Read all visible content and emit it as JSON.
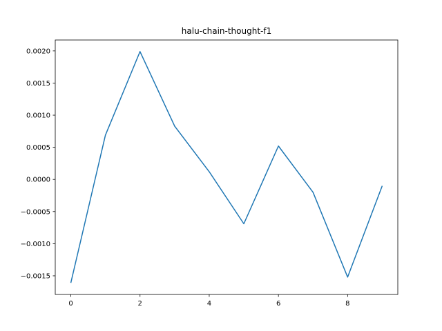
{
  "chart_data": {
    "type": "line",
    "title": "halu-chain-thought-f1",
    "xlabel": "",
    "ylabel": "",
    "x": [
      0,
      1,
      2,
      3,
      4,
      5,
      6,
      7,
      8,
      9
    ],
    "series": [
      {
        "values": [
          -0.00161,
          0.00069,
          0.00199,
          0.00083,
          0.00012,
          -0.00069,
          0.00052,
          -0.0002,
          -0.00152,
          -0.0001
        ],
        "color": "#1f77b4"
      }
    ],
    "xlim": [
      -0.45,
      9.45
    ],
    "ylim": [
      -0.00179,
      0.00217
    ],
    "xticks": [
      0,
      2,
      4,
      6,
      8
    ],
    "xtick_labels": [
      "0",
      "2",
      "4",
      "6",
      "8"
    ],
    "yticks": [
      -0.0015,
      -0.001,
      -0.0005,
      0,
      0.0005,
      0.001,
      0.0015,
      0.002
    ],
    "ytick_labels": [
      "−0.0015",
      "−0.0010",
      "−0.0005",
      "0.0000",
      "0.0005",
      "0.0010",
      "0.0015",
      "0.0020"
    ],
    "grid": false,
    "legend": "none"
  }
}
